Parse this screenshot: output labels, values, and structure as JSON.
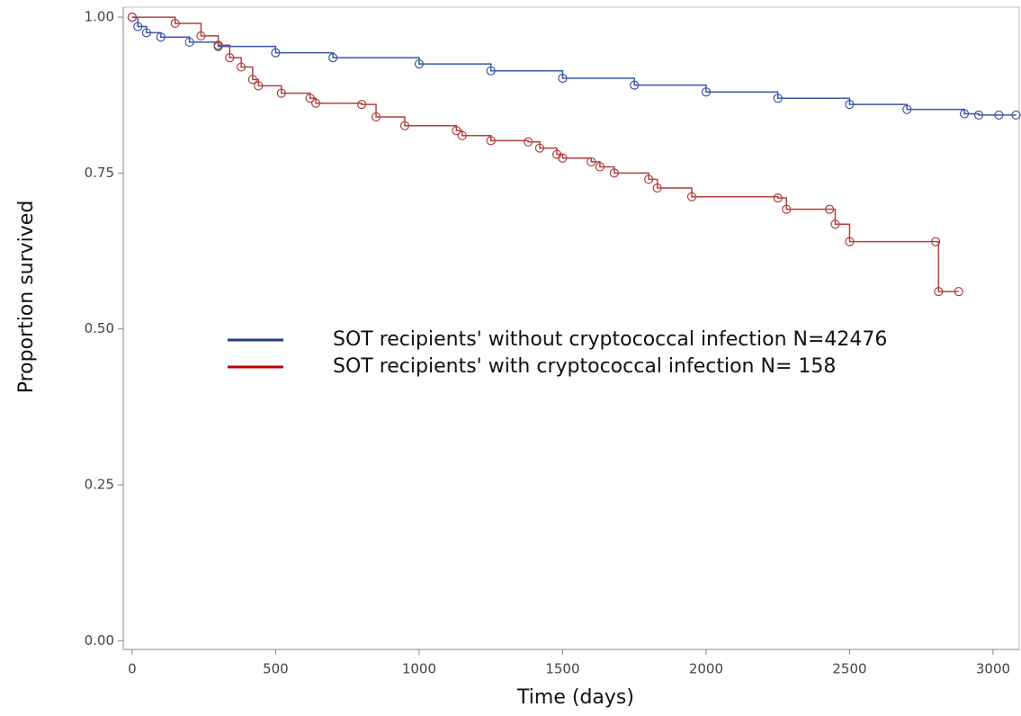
{
  "chart_data": {
    "type": "line",
    "step": true,
    "markers": true,
    "xlabel": "Time (days)",
    "ylabel": "Proportion  survived",
    "xlim": [
      -31,
      3091
    ],
    "ylim": [
      -0.014,
      1.016
    ],
    "xticks": [
      0,
      500,
      1000,
      1500,
      2000,
      2500,
      3000
    ],
    "yticks": [
      {
        "value": 0,
        "label": "0.00"
      },
      {
        "value": 0.25,
        "label": "0.25"
      },
      {
        "value": 0.5,
        "label": "0.50"
      },
      {
        "value": 0.75,
        "label": "0.75"
      },
      {
        "value": 1,
        "label": "1.00"
      }
    ],
    "series": [
      {
        "name": "SOT recipients' without cryptococcal  infection N=42476",
        "color": "#3a56a6",
        "legend_color": "#23427f",
        "x": [
          0,
          20,
          50,
          100,
          200,
          300,
          500,
          700,
          1000,
          1250,
          1500,
          1750,
          2000,
          2250,
          2500,
          2700,
          2900,
          2950,
          3020,
          3080
        ],
        "values": [
          1.0,
          0.985,
          0.975,
          0.968,
          0.96,
          0.953,
          0.943,
          0.935,
          0.925,
          0.914,
          0.902,
          0.891,
          0.88,
          0.87,
          0.86,
          0.852,
          0.845,
          0.843,
          0.843,
          0.843
        ]
      },
      {
        "name": "SOT recipients' with cryptococcal  infection N= 158",
        "color": "#b0413e",
        "legend_color": "#c00000",
        "x": [
          0,
          150,
          240,
          300,
          340,
          380,
          420,
          440,
          520,
          620,
          640,
          800,
          850,
          950,
          1130,
          1150,
          1250,
          1380,
          1420,
          1480,
          1500,
          1600,
          1630,
          1680,
          1800,
          1830,
          1950,
          2250,
          2280,
          2430,
          2450,
          2500,
          2800,
          2810,
          2880
        ],
        "values": [
          1.0,
          0.99,
          0.97,
          0.955,
          0.935,
          0.92,
          0.9,
          0.89,
          0.878,
          0.87,
          0.862,
          0.86,
          0.84,
          0.826,
          0.818,
          0.81,
          0.802,
          0.8,
          0.79,
          0.78,
          0.774,
          0.768,
          0.76,
          0.75,
          0.74,
          0.726,
          0.712,
          0.71,
          0.692,
          0.692,
          0.668,
          0.64,
          0.64,
          0.56,
          0.56
        ]
      }
    ]
  }
}
